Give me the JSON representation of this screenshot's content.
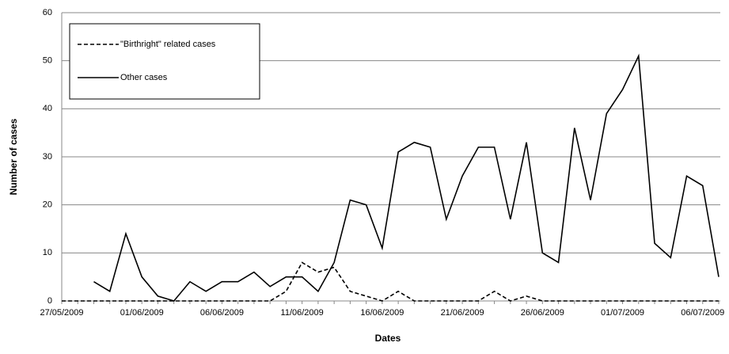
{
  "chart_data": {
    "type": "line",
    "x_label": "Dates",
    "y_label": "Number of cases",
    "categories": [
      "27/05/2009",
      null,
      null,
      null,
      null,
      "01/06/2009",
      null,
      null,
      null,
      null,
      "06/06/2009",
      null,
      null,
      null,
      null,
      "11/06/2009",
      null,
      null,
      null,
      null,
      "16/06/2009",
      null,
      null,
      null,
      null,
      "21/06/2009",
      null,
      null,
      null,
      null,
      "26/06/2009",
      null,
      null,
      null,
      null,
      "01/07/2009",
      null,
      null,
      null,
      null,
      "06/07/2009",
      null
    ],
    "series": [
      {
        "name": "\"Birthright\" related cases",
        "color": "#000000",
        "style": "dashed",
        "values": [
          0,
          0,
          0,
          0,
          0,
          0,
          0,
          0,
          0,
          0,
          0,
          0,
          0,
          0,
          2,
          8,
          6,
          7,
          2,
          1,
          0,
          2,
          0,
          0,
          0,
          0,
          0,
          2,
          0,
          1,
          0,
          0,
          0,
          0,
          0,
          0,
          0,
          0,
          0,
          0,
          0,
          0
        ]
      },
      {
        "name": "Other cases",
        "color": "#000000",
        "style": "solid",
        "values": [
          null,
          null,
          4,
          2,
          14,
          5,
          1,
          0,
          4,
          2,
          4,
          4,
          6,
          3,
          5,
          5,
          2,
          8,
          21,
          20,
          11,
          31,
          33,
          32,
          17,
          26,
          32,
          32,
          17,
          33,
          10,
          8,
          36,
          21,
          39,
          44,
          51,
          12,
          9,
          26,
          24,
          5
        ]
      }
    ],
    "ylim": [
      0,
      60
    ],
    "yticks": [
      0,
      10,
      20,
      30,
      40,
      50,
      60
    ],
    "grid": true,
    "legend": "top-left"
  }
}
